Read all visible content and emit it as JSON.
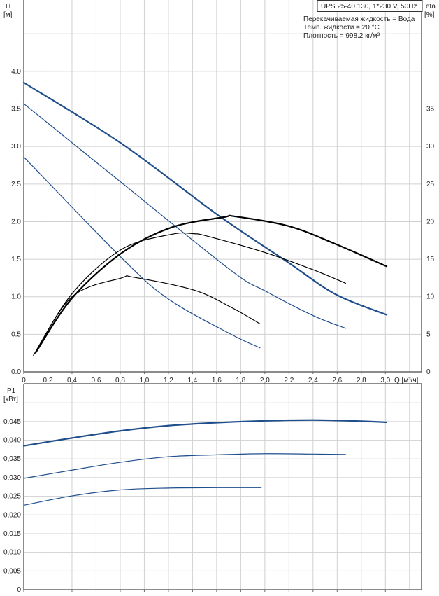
{
  "header": {
    "pump_title": "UPS 25-40 130, 1*230 V, 50Hz",
    "info_lines": [
      "Перекачиваемая жидкость = Вода",
      "Темп. жидкости = 20 °C",
      "Плотность = 998.2 кг/м³"
    ]
  },
  "colors": {
    "head_curve": "#1f4e8c",
    "eta_curve": "#000000",
    "power_curve": "#1f4e8c",
    "grid": "#d0d0d0"
  },
  "chart_data": [
    {
      "type": "line",
      "title": "",
      "xlabel": "Q [м³/ч]",
      "ylabel": "H [м]",
      "y2label": "eta [%]",
      "ylabel_name": "H",
      "ylabel_unit": "[м]",
      "y2label_name": "eta",
      "y2label_unit": "[%]",
      "xlim": [
        0,
        3.3
      ],
      "ylim": [
        0,
        4.95
      ],
      "y2lim": [
        0,
        49.5
      ],
      "grid": true,
      "xticks": [
        "0",
        "0,2",
        "0,4",
        "0,6",
        "0,8",
        "1,0",
        "1,2",
        "1,4",
        "1,6",
        "1,8",
        "2,0",
        "2,2",
        "2,4",
        "2,6",
        "2,8",
        "3,0"
      ],
      "yticks": [
        "0.0",
        "0.5",
        "1.0",
        "1.5",
        "2.0",
        "2.5",
        "3.0",
        "3.5",
        "4.0"
      ],
      "y2ticks": [
        "0",
        "5",
        "10",
        "15",
        "20",
        "25",
        "30",
        "35"
      ],
      "series": [
        {
          "kind": "head",
          "axis": "H",
          "speed": 3,
          "x": [
            0,
            0.81,
            1.6,
            2.2,
            2.59,
            3.01
          ],
          "y": [
            3.85,
            3.04,
            2.1,
            1.45,
            1.03,
            0.76
          ]
        },
        {
          "kind": "head",
          "axis": "H",
          "speed": 2,
          "x": [
            0,
            0.81,
            1.72,
            2.0,
            2.4,
            2.67
          ],
          "y": [
            3.57,
            2.52,
            1.35,
            1.08,
            0.75,
            0.58
          ]
        },
        {
          "kind": "head",
          "axis": "H",
          "speed": 1,
          "x": [
            0,
            0.81,
            1.2,
            1.72,
            1.96
          ],
          "y": [
            2.86,
            1.52,
            0.97,
            0.5,
            0.32
          ]
        },
        {
          "kind": "eta",
          "axis": "eta",
          "speed": 3,
          "x": [
            0.1,
            0.4,
            0.81,
            1.22,
            1.66,
            1.75,
            2.2,
            2.59,
            3.01
          ],
          "y": [
            2.6,
            9.8,
            15.8,
            19.2,
            20.6,
            20.7,
            19.4,
            17.0,
            14.05
          ]
        },
        {
          "kind": "eta",
          "axis": "eta",
          "speed": 2,
          "x": [
            0.08,
            0.4,
            0.81,
            1.22,
            1.41,
            1.54,
            2.0,
            2.4,
            2.67
          ],
          "y": [
            2.2,
            10.4,
            16.3,
            18.3,
            18.4,
            18.0,
            15.9,
            13.6,
            11.8
          ]
        },
        {
          "kind": "eta",
          "axis": "eta",
          "speed": 1,
          "x": [
            0.09,
            0.4,
            0.81,
            0.91,
            1.41,
            1.72,
            1.96
          ],
          "y": [
            2.4,
            10.0,
            12.5,
            12.6,
            10.9,
            8.6,
            6.4
          ]
        }
      ]
    },
    {
      "type": "line",
      "title": "",
      "ylabel": "P1 [кВт]",
      "ylabel_name": "P1",
      "ylabel_unit": "[кВт]",
      "xlim": [
        0,
        3.3
      ],
      "ylim": [
        0,
        0.0551
      ],
      "grid": true,
      "yticks": [
        "0",
        "0,005",
        "0,010",
        "0,015",
        "0,020",
        "0,025",
        "0,030",
        "0,035",
        "0,040",
        "0,045"
      ],
      "series": [
        {
          "kind": "power",
          "speed": 3,
          "x": [
            0,
            0.4,
            0.8,
            1.2,
            1.6,
            2.0,
            2.4,
            2.8,
            3.01
          ],
          "y": [
            0.0385,
            0.0406,
            0.0425,
            0.0439,
            0.0447,
            0.0452,
            0.0454,
            0.0451,
            0.0448
          ]
        },
        {
          "kind": "power",
          "speed": 2,
          "x": [
            0,
            0.4,
            0.8,
            1.2,
            1.6,
            2.0,
            2.4,
            2.67
          ],
          "y": [
            0.0298,
            0.032,
            0.0341,
            0.0356,
            0.0361,
            0.0364,
            0.0363,
            0.0362
          ]
        },
        {
          "kind": "power",
          "speed": 1,
          "x": [
            0,
            0.4,
            0.8,
            1.2,
            1.6,
            1.97
          ],
          "y": [
            0.0226,
            0.0251,
            0.0267,
            0.0272,
            0.0273,
            0.0273
          ]
        }
      ]
    }
  ]
}
